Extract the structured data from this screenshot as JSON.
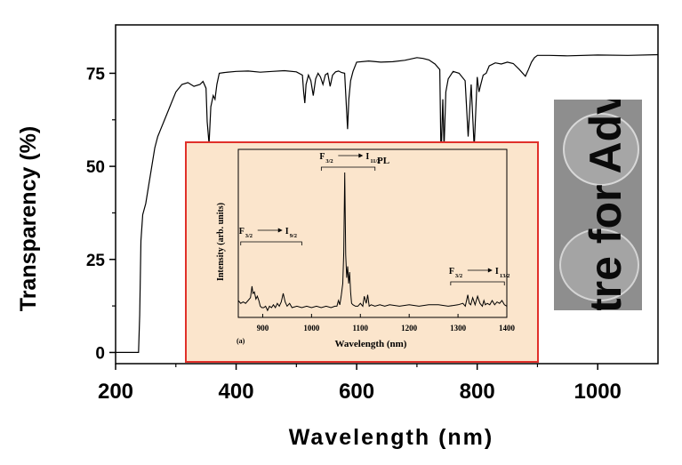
{
  "chart_data": [
    {
      "type": "line",
      "title": "",
      "xlabel": "Wavelength (nm)",
      "ylabel": "Transparency (%)",
      "xlim": [
        200,
        1100
      ],
      "ylim": [
        -3,
        88
      ],
      "x_ticks": [
        200,
        400,
        600,
        800,
        1000
      ],
      "y_ticks": [
        0,
        25,
        50,
        75
      ],
      "x_tick_labels": [
        "200",
        "400",
        "600",
        "800",
        "1000"
      ],
      "y_tick_labels": [
        "0",
        "25",
        "50",
        "75"
      ],
      "grid": false,
      "legend": "none",
      "line_color": "#000000",
      "series": [
        {
          "x": [
            200,
            238,
            240,
            242,
            245,
            250,
            255,
            260,
            265,
            270,
            275,
            280,
            285,
            290,
            295,
            300,
            310,
            320,
            330,
            340,
            345,
            350,
            352,
            355,
            358,
            362,
            365,
            368,
            372,
            380,
            400,
            420,
            440,
            460,
            480,
            500,
            510,
            512,
            514,
            516,
            520,
            524,
            528,
            532,
            536,
            540,
            544,
            548,
            552,
            556,
            560,
            565,
            570,
            575,
            580,
            585,
            587,
            590,
            594,
            600,
            620,
            640,
            660,
            680,
            700,
            710,
            720,
            730,
            738,
            740,
            743,
            745,
            748,
            752,
            760,
            770,
            780,
            785,
            790,
            795,
            800,
            803,
            806,
            810,
            815,
            820,
            830,
            840,
            850,
            860,
            870,
            880,
            885,
            890,
            895,
            900,
            920,
            950,
            1000,
            1050,
            1100
          ],
          "y": [
            0,
            0,
            10,
            30,
            37,
            40,
            45,
            50,
            55,
            58,
            60,
            62,
            64,
            66,
            68,
            70,
            72,
            72.5,
            71.5,
            72,
            72.8,
            71,
            62,
            56,
            66,
            69,
            68,
            72,
            75,
            75.2,
            75.5,
            75.6,
            75.3,
            75.5,
            75.7,
            75.4,
            74.5,
            70,
            67,
            72,
            74.5,
            73,
            69,
            73.5,
            75,
            74,
            72,
            74.6,
            75,
            71.5,
            74.5,
            75.4,
            75.6,
            75.2,
            75,
            60,
            68,
            73,
            75.5,
            78,
            78.3,
            78,
            78.1,
            78.5,
            79.2,
            79,
            78.6,
            77.5,
            76,
            52,
            68,
            55,
            70,
            73.5,
            75.5,
            75,
            73,
            58,
            72,
            55,
            74,
            70,
            72,
            74.5,
            75,
            77,
            77.8,
            77.5,
            78,
            77.6,
            76,
            74.2,
            76,
            78,
            79.2,
            79.8,
            79.8,
            79.7,
            79.9,
            79.8,
            80
          ]
        }
      ]
    },
    {
      "type": "line",
      "title": "PL",
      "xlabel": "Wavelength (nm)",
      "ylabel": "Intensity (arb. units)",
      "xlim": [
        850,
        1400
      ],
      "x_ticks": [
        900,
        1000,
        1100,
        1200,
        1300,
        1400
      ],
      "x_tick_labels": [
        "900",
        "1000",
        "1100",
        "1200",
        "1300",
        "1400"
      ],
      "panel_label": "(a)",
      "background_color": "#fbe5cc",
      "border_color": "#e0302a",
      "line_color": "#000000",
      "annotations": [
        {
          "main": "F",
          "sub": "3/2",
          "arrow_to": "I",
          "arrow_sub": "11/2",
          "range": [
            1020,
            1130
          ]
        },
        {
          "main": "F",
          "sub": "3/2",
          "arrow_to": "I",
          "arrow_sub": "9/2",
          "range": [
            855,
            980
          ]
        },
        {
          "main": "F",
          "sub": "3/2",
          "arrow_to": "I",
          "arrow_sub": "13/2",
          "range": [
            1285,
            1395
          ]
        }
      ],
      "series": [
        {
          "x": [
            850,
            855,
            860,
            865,
            870,
            875,
            878,
            880,
            883,
            886,
            889,
            892,
            895,
            898,
            902,
            906,
            910,
            914,
            918,
            922,
            926,
            930,
            934,
            938,
            942,
            946,
            950,
            955,
            960,
            970,
            980,
            990,
            1000,
            1010,
            1020,
            1030,
            1040,
            1048,
            1052,
            1055,
            1058,
            1061,
            1064,
            1066,
            1068,
            1070,
            1072,
            1074,
            1076,
            1078,
            1080,
            1082,
            1085,
            1090,
            1095,
            1100,
            1105,
            1108,
            1112,
            1115,
            1118,
            1122,
            1130,
            1140,
            1150,
            1160,
            1180,
            1200,
            1220,
            1240,
            1260,
            1280,
            1300,
            1310,
            1315,
            1320,
            1323,
            1326,
            1330,
            1335,
            1340,
            1345,
            1350,
            1353,
            1356,
            1360,
            1365,
            1370,
            1375,
            1380,
            1385,
            1390,
            1395,
            1400
          ],
          "y": [
            10,
            8,
            9,
            8,
            10,
            12,
            20,
            15,
            16,
            11,
            13,
            10,
            6,
            5,
            5,
            6,
            3,
            6,
            5,
            7,
            5,
            8,
            6,
            9,
            15,
            9,
            6,
            8,
            5,
            6,
            5,
            6,
            5,
            6,
            5,
            6,
            5,
            6,
            6,
            10,
            7,
            14,
            22,
            44,
            100,
            42,
            26,
            34,
            22,
            30,
            16,
            8,
            7,
            6,
            6,
            8,
            6,
            13,
            8,
            14,
            6,
            7,
            6,
            7,
            6,
            7,
            6,
            7,
            6,
            7,
            7,
            6,
            7,
            8,
            6,
            14,
            8,
            7,
            12,
            7,
            13,
            8,
            6,
            10,
            7,
            8,
            7,
            10,
            7,
            9,
            8,
            10,
            7,
            6
          ]
        }
      ]
    }
  ],
  "photo": {
    "text": "tre for Adv",
    "background_color": "#8e8e8e"
  }
}
